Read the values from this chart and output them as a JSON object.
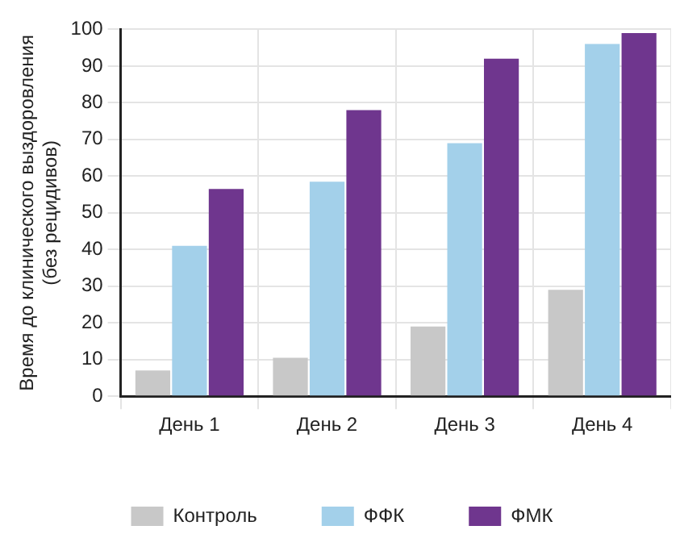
{
  "chart_data": {
    "type": "bar",
    "ylabel": "Время до клинического выздоровления\n(без рецидивов)",
    "categories": [
      "День 1",
      "День 2",
      "День 3",
      "День 4"
    ],
    "series": [
      {
        "name": "Контроль",
        "color": "#c8c8c8",
        "values": [
          7,
          10.5,
          19,
          29
        ]
      },
      {
        "name": "ФФК",
        "color": "#a3d0ea",
        "values": [
          41,
          58.5,
          69,
          96
        ]
      },
      {
        "name": "ФМК",
        "color": "#6f368e",
        "values": [
          56.5,
          78,
          92,
          99
        ]
      }
    ],
    "ylim": [
      0,
      100
    ],
    "yticks": [
      0,
      10,
      20,
      30,
      40,
      50,
      60,
      70,
      80,
      90,
      100
    ],
    "grid": true,
    "legend": "bottom"
  }
}
